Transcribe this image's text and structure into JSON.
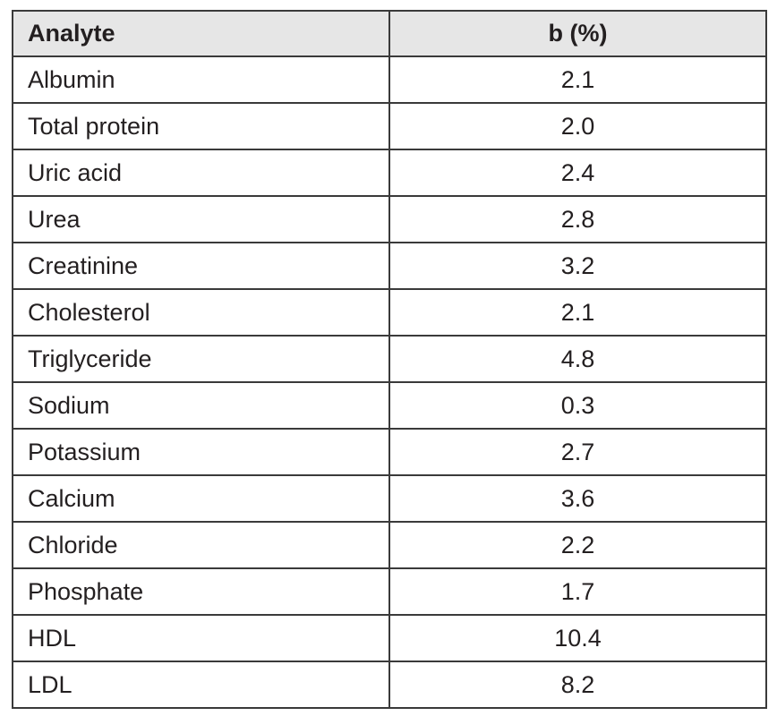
{
  "table": {
    "headers": {
      "analyte": "Analyte",
      "value": "b (%)"
    },
    "rows": [
      {
        "analyte": "Albumin",
        "value": "2.1"
      },
      {
        "analyte": "Total protein",
        "value": "2.0"
      },
      {
        "analyte": "Uric acid",
        "value": "2.4"
      },
      {
        "analyte": "Urea",
        "value": "2.8"
      },
      {
        "analyte": "Creatinine",
        "value": "3.2"
      },
      {
        "analyte": "Cholesterol",
        "value": "2.1"
      },
      {
        "analyte": "Triglyceride",
        "value": "4.8"
      },
      {
        "analyte": "Sodium",
        "value": "0.3"
      },
      {
        "analyte": "Potassium",
        "value": "2.7"
      },
      {
        "analyte": "Calcium",
        "value": "3.6"
      },
      {
        "analyte": "Chloride",
        "value": "2.2"
      },
      {
        "analyte": "Phosphate",
        "value": "1.7"
      },
      {
        "analyte": "HDL",
        "value": "10.4"
      },
      {
        "analyte": "LDL",
        "value": "8.2"
      }
    ]
  },
  "colors": {
    "header_background": "#e6e6e6",
    "border": "#3a3a3a",
    "text": "#231f20"
  }
}
